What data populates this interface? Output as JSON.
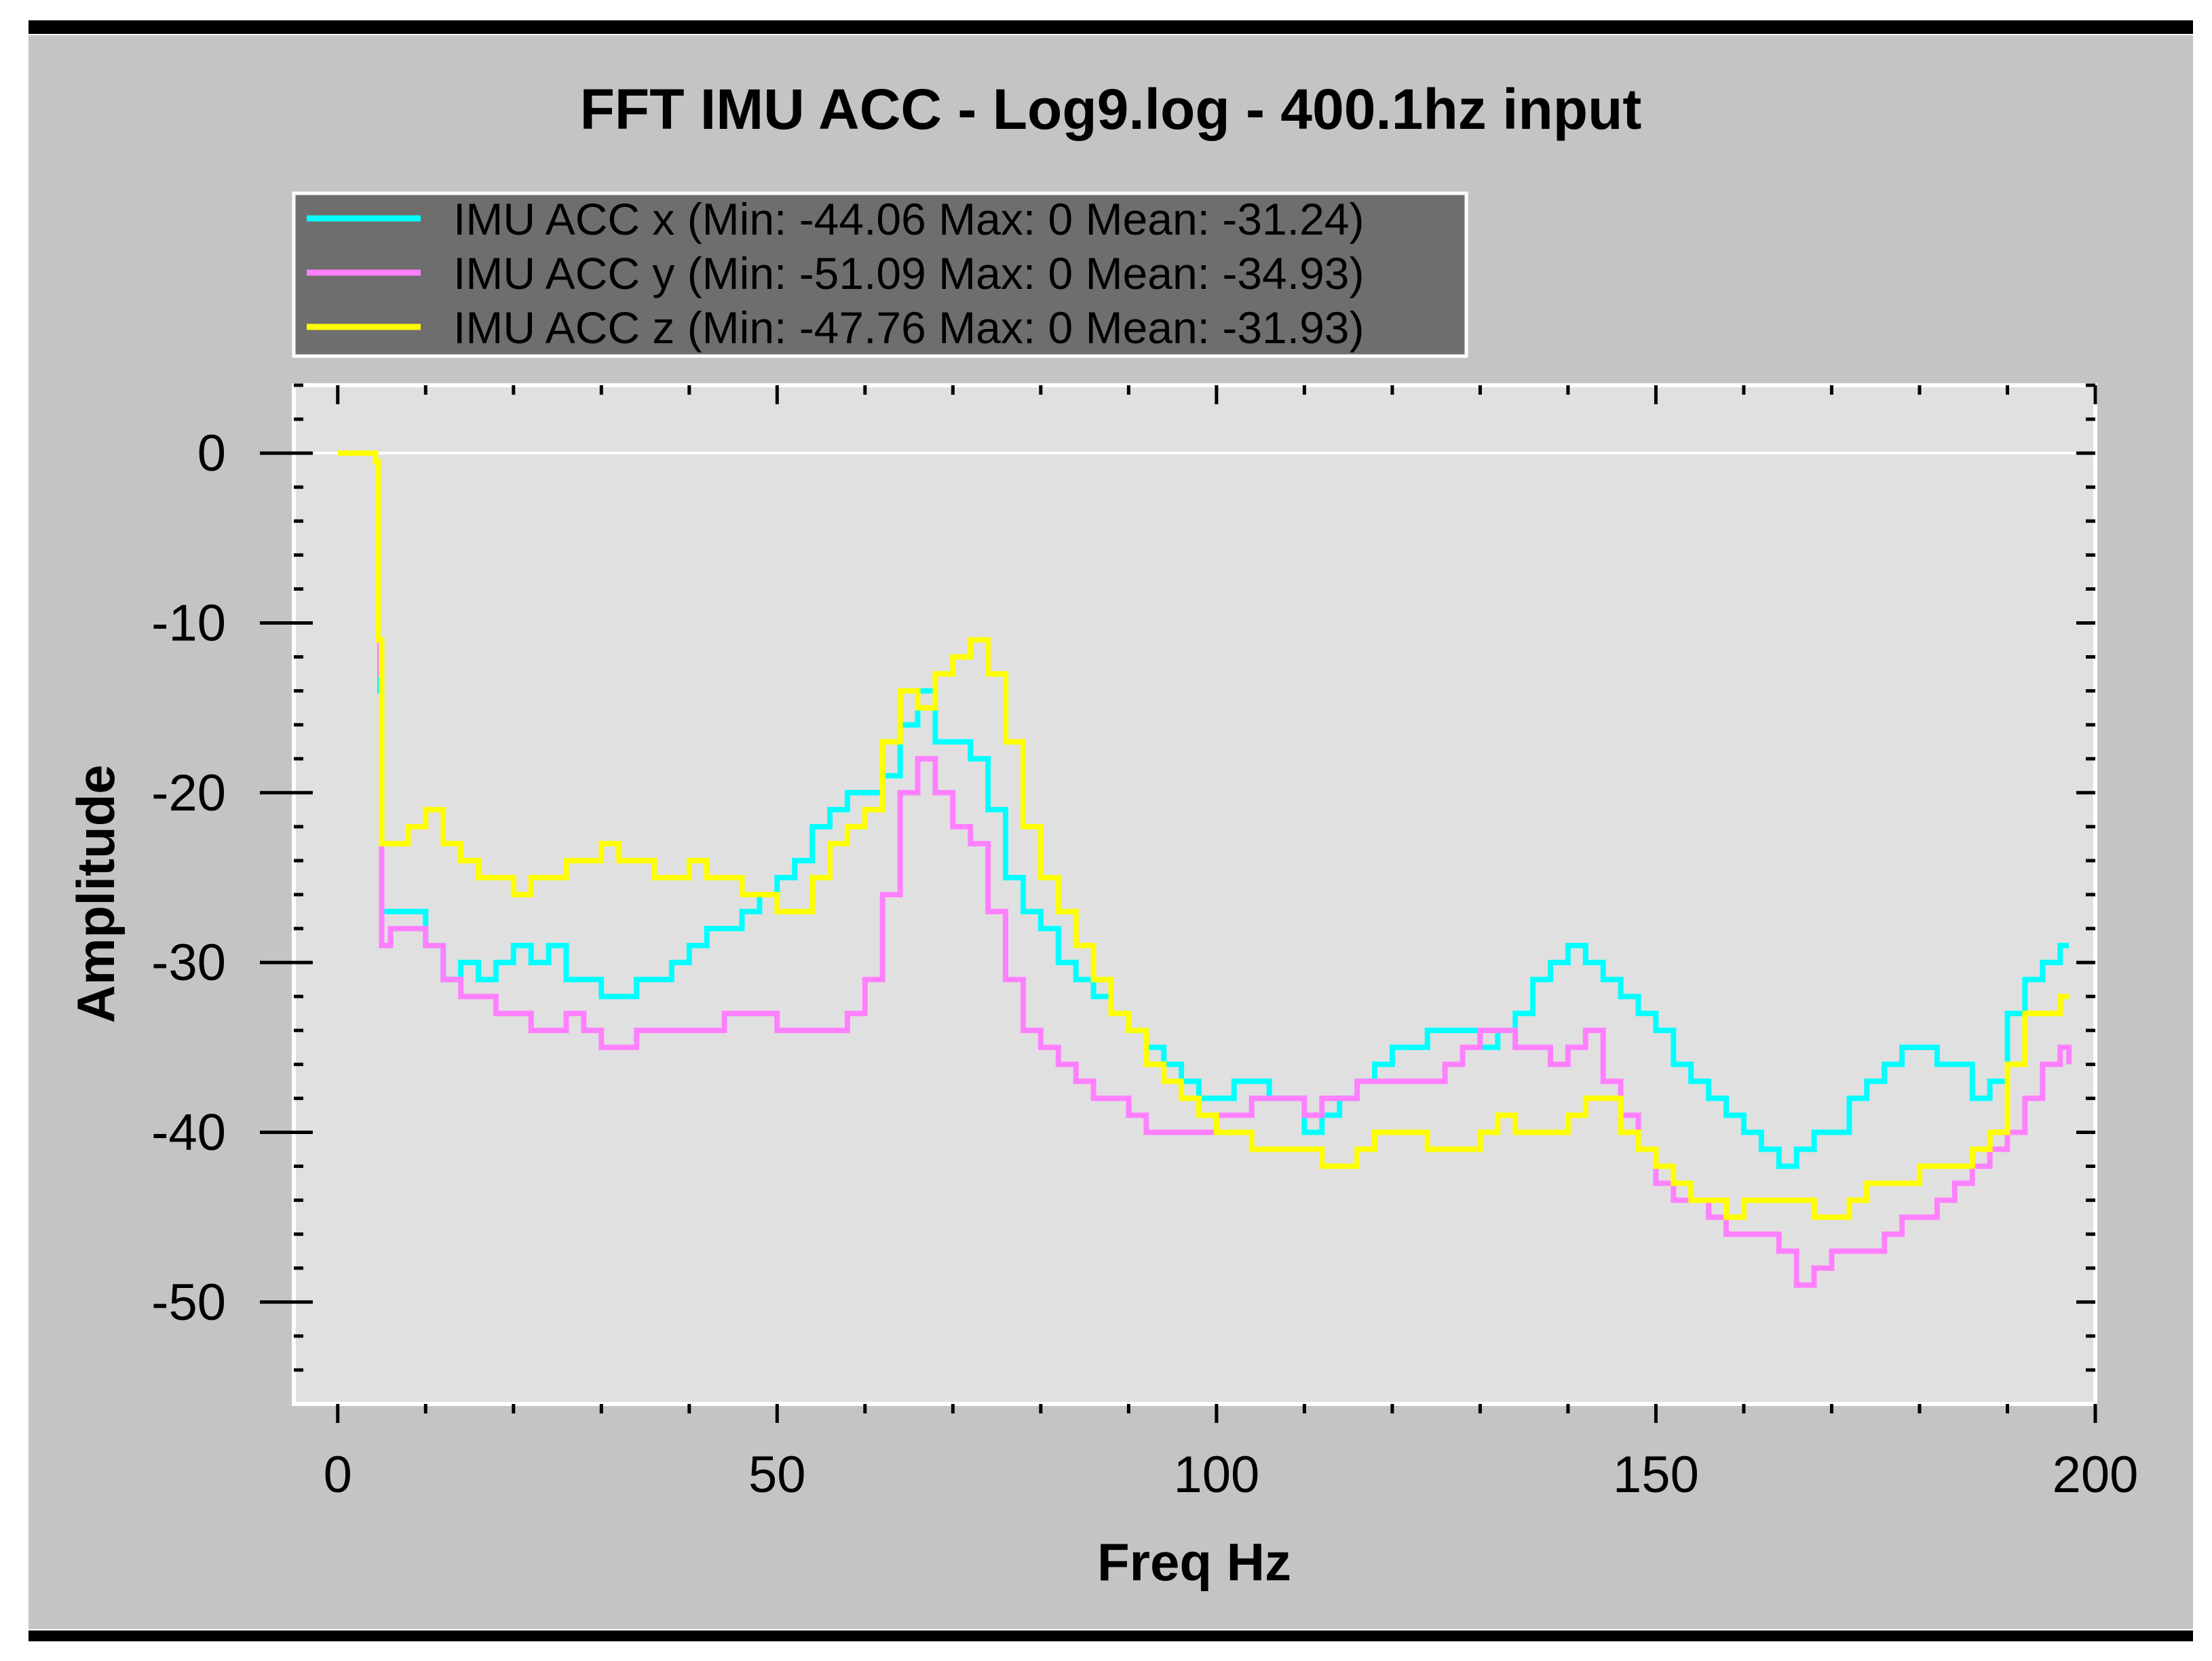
{
  "colors": {
    "frame": "#000000",
    "panel": "#c4c4c4",
    "plot_bg": "#e0e0e0",
    "axis": "#000000",
    "plot_border": "#ffffff",
    "zero_line": "#ffffff",
    "legend_bg": "#6e6e6e",
    "legend_border": "#ffffff",
    "legend_text": "#000000"
  },
  "chart_data": {
    "type": "line",
    "title": "FFT IMU ACC  - Log9.log - 400.1hz input",
    "xlabel": "Freq Hz",
    "ylabel": "Amplitude",
    "xlim": [
      -5,
      200
    ],
    "ylim": [
      -56,
      4
    ],
    "x_ticks": [
      0,
      50,
      100,
      150,
      200
    ],
    "y_ticks": [
      0,
      -10,
      -20,
      -30,
      -40,
      -50
    ],
    "grid": false,
    "legend_position": "top-left",
    "series": [
      {
        "name": "IMU ACC x (Min: -44.06 Max: 0 Mean: -31.24)",
        "color": "#00ffff",
        "x": [
          4.5,
          4.8,
          5,
          6,
          8,
          10,
          12,
          14,
          16,
          18,
          20,
          22,
          24,
          26,
          28,
          30,
          32,
          34,
          36,
          38,
          40,
          42,
          44,
          46,
          48,
          50,
          52,
          54,
          56,
          58,
          60,
          62,
          64,
          66,
          68,
          70,
          72,
          74,
          76,
          78,
          80,
          82,
          84,
          86,
          88,
          90,
          92,
          94,
          96,
          98,
          100,
          102,
          104,
          106,
          108,
          110,
          112,
          114,
          116,
          118,
          120,
          122,
          124,
          126,
          128,
          130,
          132,
          134,
          136,
          138,
          140,
          142,
          144,
          146,
          148,
          150,
          152,
          154,
          156,
          158,
          160,
          162,
          164,
          166,
          168,
          170,
          172,
          174,
          176,
          178,
          180,
          182,
          184,
          186,
          188,
          190,
          192,
          194,
          196,
          197
        ],
        "y": [
          -14,
          -12,
          -27,
          -27,
          -27,
          -29,
          -31,
          -30,
          -31,
          -30,
          -29,
          -30,
          -29,
          -31,
          -31,
          -32,
          -32,
          -31,
          -31,
          -30,
          -29,
          -28,
          -28,
          -27,
          -26,
          -25,
          -24,
          -22,
          -21,
          -20,
          -20,
          -19,
          -16,
          -14,
          -17,
          -17,
          -18,
          -21,
          -25,
          -27,
          -28,
          -30,
          -31,
          -32,
          -33,
          -34,
          -35,
          -36,
          -37,
          -38,
          -38,
          -37,
          -37,
          -38,
          -38,
          -40,
          -39,
          -38,
          -37,
          -36,
          -35,
          -35,
          -34,
          -34,
          -34,
          -35,
          -34,
          -33,
          -31,
          -30,
          -29,
          -30,
          -31,
          -32,
          -33,
          -34,
          -36,
          -37,
          -38,
          -39,
          -40,
          -41,
          -42,
          -41,
          -40,
          -40,
          -38,
          -37,
          -36,
          -35,
          -35,
          -36,
          -36,
          -38,
          -37,
          -33,
          -31,
          -30,
          -29,
          -29
        ]
      },
      {
        "name": "IMU ACC y (Min: -51.09 Max: 0 Mean: -34.93)",
        "color": "#ff80ff",
        "x": [
          4.5,
          4.8,
          5,
          6,
          8,
          10,
          12,
          14,
          16,
          18,
          20,
          22,
          24,
          26,
          28,
          30,
          32,
          34,
          36,
          38,
          40,
          42,
          44,
          46,
          48,
          50,
          52,
          54,
          56,
          58,
          60,
          62,
          64,
          66,
          68,
          70,
          72,
          74,
          76,
          78,
          80,
          82,
          84,
          86,
          88,
          90,
          92,
          94,
          96,
          98,
          100,
          102,
          104,
          106,
          108,
          110,
          112,
          114,
          116,
          118,
          120,
          122,
          124,
          126,
          128,
          130,
          132,
          134,
          136,
          138,
          140,
          142,
          144,
          146,
          148,
          150,
          152,
          154,
          156,
          158,
          160,
          162,
          164,
          166,
          168,
          170,
          172,
          174,
          176,
          178,
          180,
          182,
          184,
          186,
          188,
          190,
          192,
          194,
          196,
          197
        ],
        "y": [
          -13,
          -11,
          -29,
          -28,
          -28,
          -29,
          -31,
          -32,
          -32,
          -33,
          -33,
          -34,
          -34,
          -33,
          -34,
          -35,
          -35,
          -34,
          -34,
          -34,
          -34,
          -34,
          -33,
          -33,
          -33,
          -34,
          -34,
          -34,
          -34,
          -33,
          -31,
          -26,
          -20,
          -18,
          -20,
          -22,
          -23,
          -27,
          -31,
          -34,
          -35,
          -36,
          -37,
          -38,
          -38,
          -39,
          -40,
          -40,
          -40,
          -40,
          -39,
          -39,
          -38,
          -38,
          -38,
          -39,
          -38,
          -38,
          -37,
          -37,
          -37,
          -37,
          -37,
          -36,
          -35,
          -34,
          -34,
          -35,
          -35,
          -36,
          -35,
          -34,
          -37,
          -39,
          -41,
          -43,
          -44,
          -44,
          -45,
          -46,
          -46,
          -46,
          -47,
          -49,
          -48,
          -47,
          -47,
          -47,
          -46,
          -45,
          -45,
          -44,
          -43,
          -42,
          -41,
          -40,
          -38,
          -36,
          -35,
          -36
        ]
      },
      {
        "name": "IMU ACC z (Min: -47.76 Max: 0 Mean: -31.93)",
        "color": "#ffff00",
        "x": [
          0,
          4,
          4.3,
          4.6,
          5,
          6,
          8,
          10,
          12,
          14,
          16,
          18,
          20,
          22,
          24,
          26,
          28,
          30,
          32,
          34,
          36,
          38,
          40,
          42,
          44,
          46,
          48,
          50,
          52,
          54,
          56,
          58,
          60,
          62,
          64,
          66,
          68,
          70,
          72,
          74,
          76,
          78,
          80,
          82,
          84,
          86,
          88,
          90,
          92,
          94,
          96,
          98,
          100,
          102,
          104,
          106,
          108,
          110,
          112,
          114,
          116,
          118,
          120,
          122,
          124,
          126,
          128,
          130,
          132,
          134,
          136,
          138,
          140,
          142,
          144,
          146,
          148,
          150,
          152,
          154,
          156,
          158,
          160,
          162,
          164,
          166,
          168,
          170,
          172,
          174,
          176,
          178,
          180,
          182,
          184,
          186,
          188,
          190,
          192,
          194,
          196,
          197
        ],
        "y": [
          0,
          0,
          -0.5,
          -11,
          -23,
          -23,
          -22,
          -21,
          -23,
          -24,
          -25,
          -25,
          -26,
          -25,
          -25,
          -24,
          -24,
          -23,
          -24,
          -24,
          -25,
          -25,
          -24,
          -25,
          -25,
          -26,
          -26,
          -27,
          -27,
          -25,
          -23,
          -22,
          -21,
          -17,
          -14,
          -15,
          -13,
          -12,
          -11,
          -13,
          -17,
          -22,
          -25,
          -27,
          -29,
          -31,
          -33,
          -34,
          -36,
          -37,
          -38,
          -39,
          -40,
          -40,
          -41,
          -41,
          -41,
          -41,
          -42,
          -42,
          -41,
          -40,
          -40,
          -40,
          -41,
          -41,
          -41,
          -40,
          -39,
          -40,
          -40,
          -40,
          -39,
          -38,
          -38,
          -40,
          -41,
          -42,
          -43,
          -44,
          -44,
          -45,
          -44,
          -44,
          -44,
          -44,
          -45,
          -45,
          -44,
          -43,
          -43,
          -43,
          -42,
          -42,
          -42,
          -41,
          -40,
          -36,
          -33,
          -33,
          -32,
          -32
        ]
      }
    ]
  }
}
